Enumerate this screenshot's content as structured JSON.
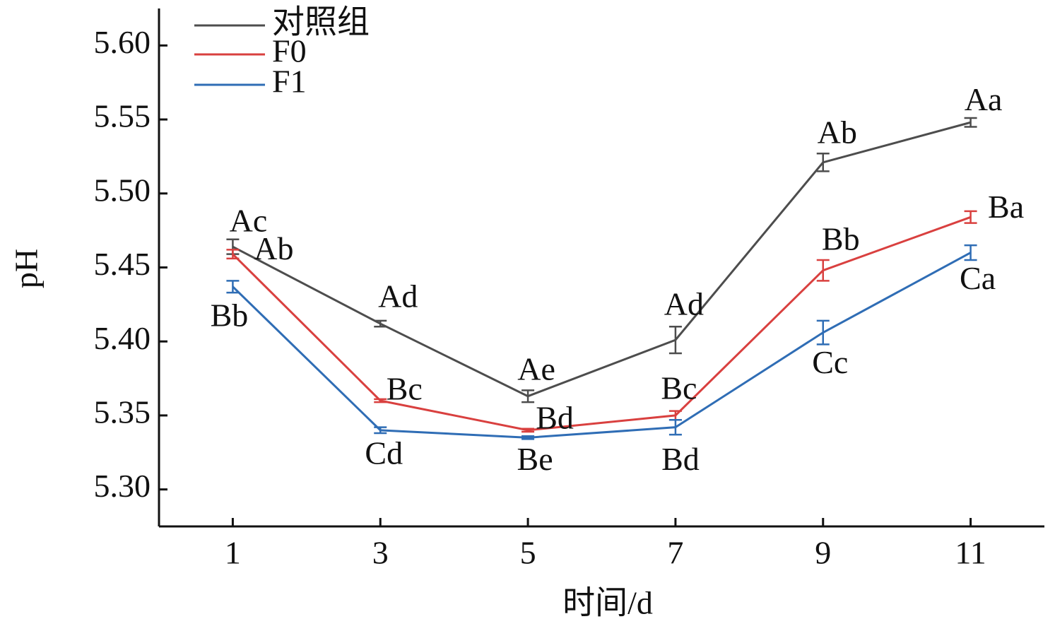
{
  "chart_data": {
    "type": "line",
    "x_label": "时间/d",
    "y_label": "pH",
    "x": [
      1,
      3,
      5,
      7,
      9,
      11
    ],
    "xlim": [
      0,
      12
    ],
    "xticks": [
      1,
      3,
      5,
      7,
      9,
      11
    ],
    "ylim": [
      5.275,
      5.625
    ],
    "yticks": [
      {
        "value": 5.3,
        "label": "5.30"
      },
      {
        "value": 5.35,
        "label": "5.35"
      },
      {
        "value": 5.4,
        "label": "5.40"
      },
      {
        "value": 5.45,
        "label": "5.45"
      },
      {
        "value": 5.5,
        "label": "5.50"
      },
      {
        "value": 5.55,
        "label": "5.55"
      },
      {
        "value": 5.6,
        "label": "5.60"
      }
    ],
    "legend": "upper left",
    "series": [
      {
        "name": "对照组",
        "color": "#4d4d4d",
        "values": [
          5.464,
          5.412,
          5.363,
          5.401,
          5.521,
          5.548
        ],
        "errors": [
          0.005,
          0.002,
          0.004,
          0.009,
          0.006,
          0.003
        ],
        "labels": [
          "Ac",
          "Ad",
          "Ae",
          "Ad",
          "Ab",
          "Aa"
        ]
      },
      {
        "name": "F0",
        "color": "#d9403f",
        "values": [
          5.459,
          5.36,
          5.34,
          5.35,
          5.448,
          5.484
        ],
        "errors": [
          0.003,
          0.001,
          0.001,
          0.003,
          0.007,
          0.004
        ],
        "labels": [
          "Ab",
          "Bc",
          "Bd",
          "Bc",
          "Bb",
          "Ba"
        ]
      },
      {
        "name": "F1",
        "color": "#2f6db5",
        "values": [
          5.437,
          5.34,
          5.335,
          5.342,
          5.406,
          5.46
        ],
        "errors": [
          0.004,
          0.002,
          0.001,
          0.005,
          0.008,
          0.005
        ],
        "labels": [
          "Bb",
          "Cd",
          "Be",
          "Bd",
          "Cc",
          "Ca"
        ]
      }
    ]
  }
}
